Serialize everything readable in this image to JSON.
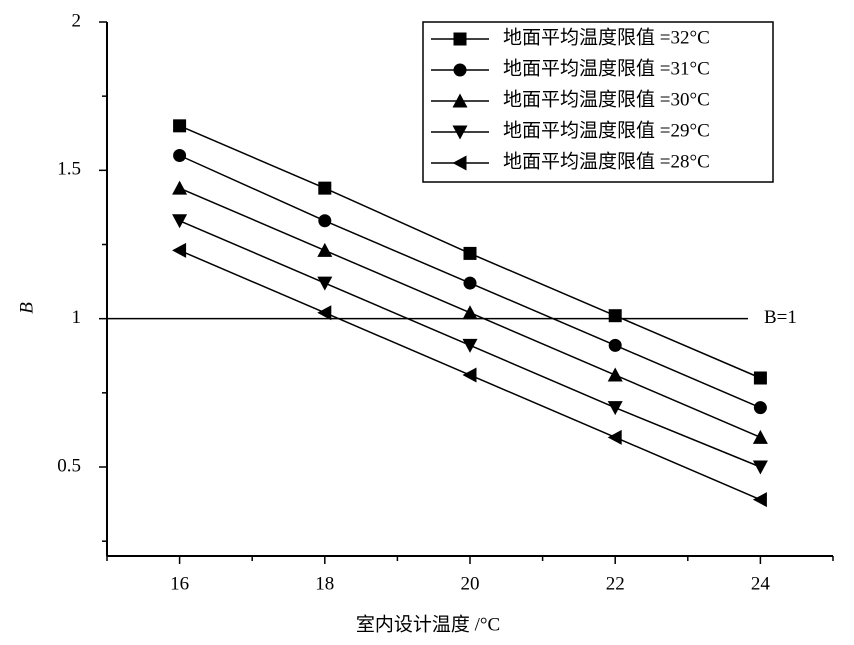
{
  "chart_data": {
    "type": "line",
    "xlabel": "室内设计温度 /°C",
    "ylabel": "B",
    "xlim": [
      15,
      25
    ],
    "xticks": [
      16,
      18,
      20,
      22,
      24
    ],
    "xminorticks": [
      15,
      17,
      19,
      21,
      23,
      25
    ],
    "ylim": [
      0.2,
      2.0
    ],
    "yticks": [
      0.5,
      1.0,
      1.5,
      2.0
    ],
    "yminorticks": [
      0.25,
      0.75,
      1.25,
      1.75
    ],
    "x": [
      16,
      18,
      20,
      22,
      24
    ],
    "series": [
      {
        "name": "地面平均温度限值 =32°C",
        "color": "#000000",
        "marker": "square",
        "values": [
          1.65,
          1.44,
          1.22,
          1.01,
          0.8
        ]
      },
      {
        "name": "地面平均温度限值 =31°C",
        "color": "#000000",
        "marker": "circle",
        "values": [
          1.55,
          1.33,
          1.12,
          0.91,
          0.7
        ]
      },
      {
        "name": "地面平均温度限值 =30°C",
        "color": "#000000",
        "marker": "triangle-up",
        "values": [
          1.44,
          1.23,
          1.02,
          0.81,
          0.6
        ]
      },
      {
        "name": "地面平均温度限值 =29°C",
        "color": "#000000",
        "marker": "triangle-down",
        "values": [
          1.33,
          1.12,
          0.91,
          0.7,
          0.5
        ]
      },
      {
        "name": "地面平均温度限值 =28°C",
        "color": "#000000",
        "marker": "triangle-left",
        "values": [
          1.23,
          1.02,
          0.81,
          0.6,
          0.39
        ]
      }
    ],
    "reference_line": {
      "value": 1.0,
      "label": "B=1",
      "color": "#000000"
    },
    "legend": "upper right"
  }
}
